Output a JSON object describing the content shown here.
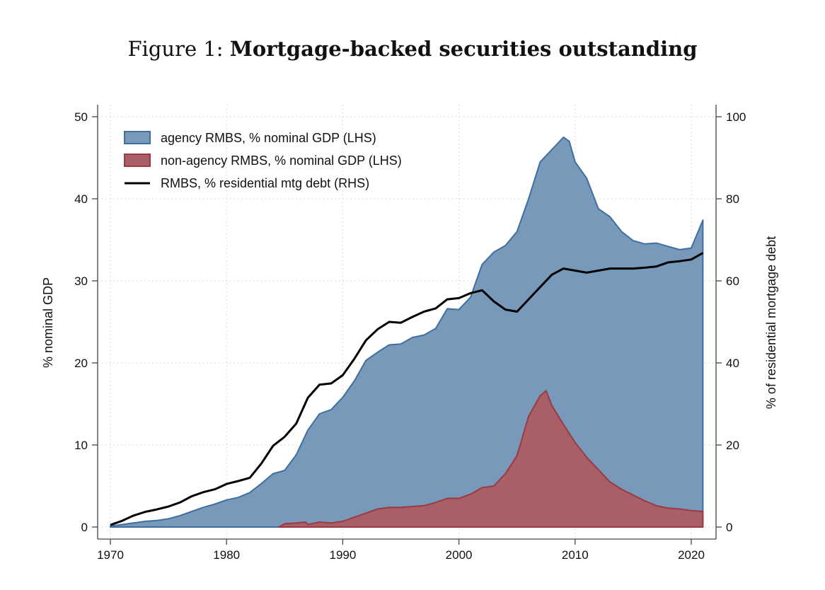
{
  "figure": {
    "prefix": "Figure 1: ",
    "title": "Mortgage-backed securities outstanding"
  },
  "chart_data": {
    "type": "area",
    "ylabel_left": "% nominal GDP",
    "ylabel_right": "% of residential mortgage debt",
    "xlim": [
      1970,
      2021
    ],
    "ylim_left": [
      0,
      50
    ],
    "ylim_right": [
      0,
      100
    ],
    "xticks": [
      1970,
      1980,
      1990,
      2000,
      2010,
      2020
    ],
    "yticks_left": [
      0,
      10,
      20,
      30,
      40,
      50
    ],
    "yticks_right": [
      0,
      20,
      40,
      60,
      80,
      100
    ],
    "grid": true,
    "legend_position": "top-left",
    "colors": {
      "agency": "#7899ba",
      "agency_edge": "#3f6f9e",
      "nonagency": "#a85f66",
      "nonagency_edge": "#9b3a43",
      "line": "#000000"
    },
    "series": [
      {
        "name": "agency RMBS, % nominal GDP (LHS)",
        "axis": "left",
        "kind": "area",
        "x": [
          1970,
          1971,
          1972,
          1973,
          1974,
          1975,
          1976,
          1977,
          1978,
          1979,
          1980,
          1981,
          1982,
          1983,
          1984,
          1985,
          1986,
          1987,
          1988,
          1989,
          1990,
          1991,
          1992,
          1993,
          1994,
          1995,
          1996,
          1997,
          1998,
          1999,
          2000,
          2001,
          2002,
          2003,
          2004,
          2005,
          2006,
          2007,
          2008,
          2009,
          2009.5,
          2010,
          2011,
          2012,
          2013,
          2014,
          2015,
          2016,
          2017,
          2018,
          2019,
          2020,
          2021
        ],
        "values": [
          0.1,
          0.3,
          0.5,
          0.7,
          0.8,
          1.0,
          1.4,
          1.9,
          2.4,
          2.8,
          3.3,
          3.6,
          4.2,
          5.3,
          6.5,
          6.9,
          8.8,
          11.8,
          13.8,
          14.3,
          15.8,
          17.8,
          20.3,
          21.3,
          22.2,
          22.3,
          23.1,
          23.4,
          24.2,
          26.6,
          26.5,
          28.0,
          32.0,
          33.5,
          34.3,
          36.0,
          40.0,
          44.5,
          46.0,
          47.5,
          47.0,
          44.5,
          42.5,
          38.8,
          37.8,
          36.0,
          34.9,
          34.5,
          34.6,
          34.2,
          33.8,
          34.0,
          37.4
        ]
      },
      {
        "name": "non-agency RMBS, % nominal GDP (LHS)",
        "axis": "left",
        "kind": "area",
        "x": [
          1984.5,
          1985,
          1986,
          1986.8,
          1987,
          1988,
          1989,
          1990,
          1991,
          1992,
          1993,
          1994,
          1995,
          1996,
          1997,
          1998,
          1999,
          2000,
          2001,
          2002,
          2003,
          2004,
          2005,
          2006,
          2007,
          2007.5,
          2008,
          2009,
          2010,
          2011,
          2012,
          2013,
          2014,
          2015,
          2016,
          2017,
          2018,
          2019,
          2020,
          2021
        ],
        "values": [
          0,
          0.4,
          0.5,
          0.6,
          0.3,
          0.6,
          0.5,
          0.7,
          1.2,
          1.7,
          2.2,
          2.4,
          2.4,
          2.5,
          2.6,
          3.0,
          3.5,
          3.5,
          4.0,
          4.8,
          5.0,
          6.5,
          8.7,
          13.5,
          16.0,
          16.6,
          14.8,
          12.5,
          10.3,
          8.5,
          7.0,
          5.5,
          4.6,
          3.9,
          3.2,
          2.6,
          2.3,
          2.2,
          2.0,
          1.9
        ]
      },
      {
        "name": "RMBS, % residential mtg debt (RHS)",
        "axis": "right",
        "kind": "line",
        "x": [
          1970,
          1971,
          1972,
          1973,
          1974,
          1975,
          1976,
          1977,
          1978,
          1979,
          1980,
          1981,
          1982,
          1983,
          1984,
          1985,
          1986,
          1987,
          1988,
          1989,
          1990,
          1991,
          1992,
          1993,
          1994,
          1995,
          1996,
          1997,
          1998,
          1999,
          2000,
          2001,
          2002,
          2003,
          2004,
          2005,
          2006,
          2007,
          2008,
          2009,
          2010,
          2011,
          2012,
          2013,
          2014,
          2015,
          2016,
          2017,
          2018,
          2019,
          2020,
          2021
        ],
        "values": [
          0.5,
          1.5,
          2.8,
          3.7,
          4.3,
          5.0,
          6.0,
          7.5,
          8.5,
          9.2,
          10.5,
          11.2,
          12.0,
          15.5,
          19.8,
          22.0,
          25.2,
          31.5,
          34.7,
          35.0,
          37.0,
          41.0,
          45.5,
          48.2,
          50.0,
          49.8,
          51.2,
          52.5,
          53.3,
          55.5,
          55.8,
          57.0,
          57.7,
          55.0,
          53.0,
          52.5,
          55.5,
          58.5,
          61.5,
          63.0,
          62.5,
          62.0,
          62.5,
          63.0,
          63.0,
          63.0,
          63.2,
          63.5,
          64.5,
          64.8,
          65.2,
          66.8
        ]
      }
    ]
  }
}
